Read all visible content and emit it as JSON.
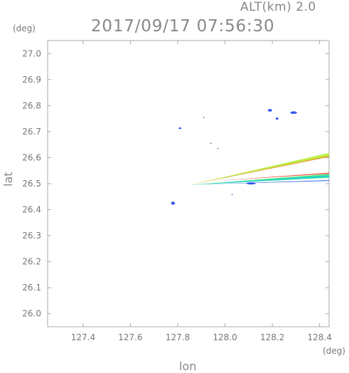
{
  "header": {
    "alt_label": "ALT(km) 2.0",
    "timestamp": "2017/09/17 07:56:30"
  },
  "chart_data": {
    "type": "scatter",
    "title": "2017/09/17 07:56:30",
    "xlabel": "lon",
    "ylabel": "lat",
    "x_unit": "(deg)",
    "y_unit": "(deg)",
    "xlim": [
      127.25,
      128.44
    ],
    "ylim": [
      25.95,
      27.05
    ],
    "x_ticks": [
      127.4,
      127.6,
      127.8,
      128.0,
      128.2,
      128.4
    ],
    "x_tick_labels": [
      "127.4",
      "127.6",
      "127.8",
      "128.0",
      "128.2",
      "128.4"
    ],
    "y_ticks": [
      26.0,
      26.1,
      26.2,
      26.3,
      26.4,
      26.5,
      26.6,
      26.7,
      26.8,
      26.9,
      27.0
    ],
    "y_tick_labels": [
      "26.0",
      "26.1",
      "26.2",
      "26.3",
      "26.4",
      "26.5",
      "26.6",
      "26.7",
      "26.8",
      "26.9",
      "27.0"
    ],
    "grid": false,
    "blobs": [
      {
        "lon": 127.81,
        "lat": 26.713,
        "rx": 0.006,
        "ry": 0.003,
        "color": "#3355ee"
      },
      {
        "lon": 127.78,
        "lat": 26.425,
        "rx": 0.008,
        "ry": 0.006,
        "color": "#3355ee"
      },
      {
        "lon": 128.19,
        "lat": 26.782,
        "rx": 0.009,
        "ry": 0.005,
        "color": "#3355ee"
      },
      {
        "lon": 128.22,
        "lat": 26.75,
        "rx": 0.006,
        "ry": 0.004,
        "color": "#3355ee"
      },
      {
        "lon": 128.29,
        "lat": 26.773,
        "rx": 0.014,
        "ry": 0.005,
        "color": "#3355ee"
      },
      {
        "lon": 128.11,
        "lat": 26.501,
        "rx": 0.02,
        "ry": 0.004,
        "color": "#3355ee"
      },
      {
        "lon": 128.03,
        "lat": 26.458,
        "rx": 0.002,
        "ry": 0.001,
        "color": "#3355ee"
      },
      {
        "lon": 127.91,
        "lat": 26.755,
        "rx": 0.002,
        "ry": 0.001,
        "color": "#555555"
      },
      {
        "lon": 127.97,
        "lat": 26.635,
        "rx": 0.002,
        "ry": 0.001,
        "color": "#555555"
      },
      {
        "lon": 127.94,
        "lat": 26.655,
        "rx": 0.002,
        "ry": 0.001,
        "color": "#555555"
      }
    ],
    "beams": [
      {
        "from": [
          127.85,
          26.495
        ],
        "to": [
          128.44,
          26.612
        ],
        "width_lat": 0.012,
        "color": "#b8f040"
      },
      {
        "from": [
          127.85,
          26.495
        ],
        "to": [
          128.44,
          26.605
        ],
        "width_lat": 0.004,
        "color": "#f09030"
      },
      {
        "from": [
          127.85,
          26.495
        ],
        "to": [
          128.44,
          26.53
        ],
        "width_lat": 0.014,
        "color": "#40e890"
      },
      {
        "from": [
          127.85,
          26.495
        ],
        "to": [
          128.44,
          26.528
        ],
        "width_lat": 0.006,
        "color": "#20d0d0"
      },
      {
        "from": [
          127.95,
          26.51
        ],
        "to": [
          128.44,
          26.54
        ],
        "width_lat": 0.004,
        "color": "#f05030"
      },
      {
        "from": [
          127.85,
          26.496
        ],
        "to": [
          128.44,
          26.512
        ],
        "width_lat": 0.003,
        "color": "#2060e0"
      }
    ]
  }
}
